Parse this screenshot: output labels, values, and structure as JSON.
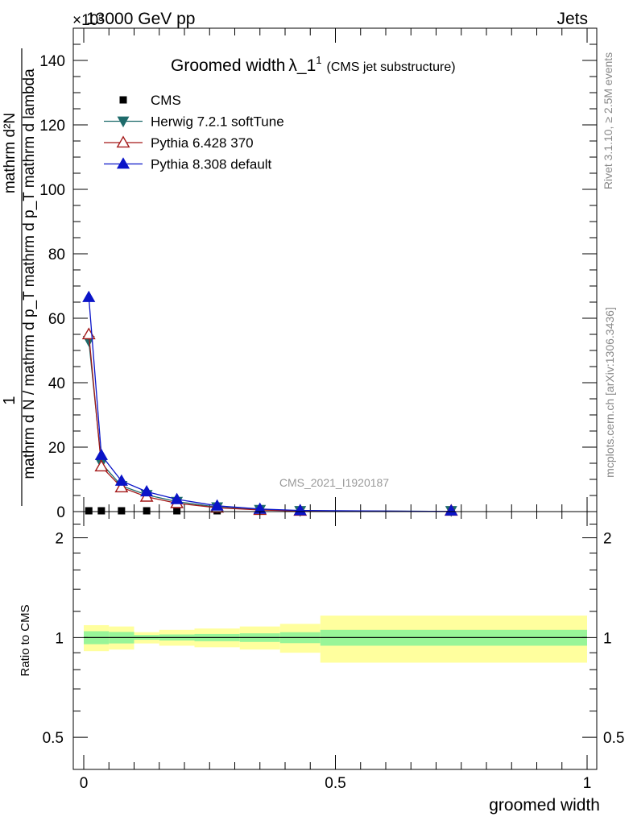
{
  "header": {
    "process": "13000 GeV pp",
    "category": "Jets",
    "exponent": "×10³"
  },
  "side": {
    "rivet": "Rivet 3.1.10, ≥ 2.5M events",
    "mcplots": "mcplots.cern.ch [arXiv:1306.3436]"
  },
  "main_plot": {
    "title_main": "Groomed width",
    "title_symbol": "λ_1",
    "title_sup": "1",
    "title_note": "(CMS jet substructure)",
    "ylabel_numerator": "1",
    "ylabel_denominator": "mathrm d N / mathrm d p_T mathrm d p_T mathrm d lambda",
    "ylabel_frac_num": "mathrm d²N",
    "ylabel_frac_den": "mathrm d p_T mathrm d lambda",
    "watermark": "CMS_2021_I1920187"
  },
  "ratio_plot": {
    "ylabel": "Ratio to CMS",
    "xlabel": "groomed width"
  },
  "chart_data": [
    {
      "type": "line",
      "title": "Groomed width λ_1^1 (CMS jet substructure)",
      "xlabel": "groomed width",
      "ylabel": "1/(dN/dp_T) d²N/(dp_T dλ) ×10³",
      "xlim": [
        0,
        1
      ],
      "ylim": [
        0,
        150
      ],
      "y_ticks": [
        0,
        20,
        40,
        60,
        80,
        100,
        120,
        140
      ],
      "legend": "top-left",
      "series": [
        {
          "name": "CMS",
          "marker": "square",
          "color": "#000000",
          "x": [
            0.01,
            0.035,
            0.075,
            0.125,
            0.185,
            0.265,
            0.35,
            0.43,
            0.73
          ],
          "y": [
            0.05,
            0.015,
            0.008,
            0.005,
            0.003,
            0.0015,
            0.0008,
            0.0003,
            0.0002
          ]
        },
        {
          "name": "Herwig 7.2.1 softTune",
          "marker": "triangle-down",
          "color": "#1e6b6b",
          "x": [
            0.01,
            0.035,
            0.075,
            0.125,
            0.185,
            0.265,
            0.35,
            0.43,
            0.73
          ],
          "y": [
            53,
            15,
            8,
            5.2,
            3.1,
            1.4,
            0.6,
            0.25,
            0.05
          ]
        },
        {
          "name": "Pythia 6.428 370",
          "marker": "triangle-up-open",
          "color": "#a31818",
          "x": [
            0.01,
            0.035,
            0.075,
            0.125,
            0.185,
            0.265,
            0.35,
            0.43,
            0.73
          ],
          "y": [
            55,
            14,
            7.5,
            4.6,
            2.6,
            1.2,
            0.5,
            0.2,
            0.04
          ]
        },
        {
          "name": "Pythia 8.308 default",
          "marker": "triangle-up",
          "color": "#0a14c8",
          "x": [
            0.01,
            0.035,
            0.075,
            0.125,
            0.185,
            0.265,
            0.35,
            0.43,
            0.73
          ],
          "y": [
            66.5,
            17.5,
            9.5,
            6.2,
            3.8,
            1.8,
            0.8,
            0.35,
            0.06
          ]
        }
      ]
    },
    {
      "type": "area",
      "title": "",
      "xlabel": "groomed width",
      "ylabel": "Ratio to CMS",
      "xlim": [
        0,
        1
      ],
      "ylim": [
        0.4,
        2.4
      ],
      "y_scale": "log",
      "y_ticks": [
        0.5,
        1,
        2
      ],
      "x_ticks": [
        0,
        0.5,
        1
      ],
      "reference_line": 1,
      "bands": {
        "edges": [
          0,
          0.05,
          0.1,
          0.15,
          0.22,
          0.31,
          0.39,
          0.47,
          1.0
        ],
        "inner_low": [
          0.955,
          0.96,
          0.985,
          0.98,
          0.975,
          0.97,
          0.962,
          0.945
        ],
        "inner_high": [
          1.045,
          1.04,
          1.018,
          1.022,
          1.025,
          1.03,
          1.038,
          1.055
        ],
        "outer_low": [
          0.91,
          0.92,
          0.96,
          0.945,
          0.935,
          0.92,
          0.9,
          0.84
        ],
        "outer_high": [
          1.09,
          1.08,
          1.038,
          1.055,
          1.065,
          1.08,
          1.1,
          1.165
        ]
      },
      "band_colors": {
        "inner": "#98f598",
        "outer": "#ffff9e"
      }
    }
  ]
}
